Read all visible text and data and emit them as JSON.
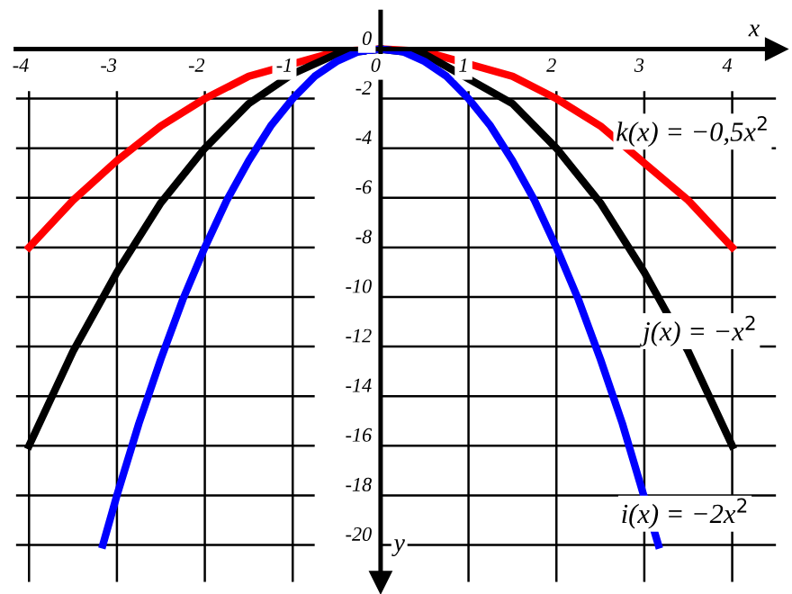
{
  "chart_data": {
    "type": "line",
    "xlabel": "x",
    "ylabel": "y",
    "xlim": [
      -4.15,
      4.5
    ],
    "ylim": [
      -21.5,
      1.5
    ],
    "xticks": [
      -4,
      -3,
      -2,
      -1,
      0,
      1,
      2,
      3,
      4
    ],
    "yticks": [
      0,
      -2,
      -4,
      -6,
      -8,
      -10,
      -12,
      -14,
      -16,
      -18,
      -20
    ],
    "grid": true,
    "legend": false,
    "marker": "none",
    "line_style": "solid",
    "series": [
      {
        "color": "#ff0000",
        "x": [
          -4,
          -3.5,
          -3,
          -2.5,
          -2,
          -1.5,
          -0.5,
          0,
          0.5,
          1.5,
          2,
          2.5,
          3.5,
          4
        ],
        "values": [
          -8,
          -6.1,
          -4.5,
          -3.1,
          -2,
          -1.1,
          -0.1,
          0,
          -0.1,
          -1.1,
          -2,
          -3.1,
          -6.1,
          -8
        ]
      },
      {
        "color": "#000000",
        "x": [
          -4,
          -3.5,
          -3,
          -2.5,
          -2,
          -1.5,
          -1,
          -0.5,
          0,
          0.5,
          1.5,
          2,
          2.5,
          3,
          3.5,
          4
        ],
        "values": [
          -16,
          -12.2,
          -9,
          -6.2,
          -4,
          -2.2,
          -1,
          -0.2,
          0,
          -0.2,
          -2.2,
          -4,
          -6.2,
          -9,
          -12.2,
          -16
        ]
      },
      {
        "color": "#0000ff",
        "x": [
          -3.16,
          -3,
          -2.75,
          -2.5,
          -2.25,
          -2,
          -1.75,
          -1.5,
          -1.25,
          -1,
          -0.75,
          -0.5,
          -0.25,
          0,
          0.25,
          0.5,
          0.75,
          1,
          1.25,
          1.5,
          1.75,
          2,
          2.25,
          2.5,
          2.75,
          3.16
        ],
        "values": [
          -20,
          -18,
          -15.1,
          -12.5,
          -10.1,
          -8,
          -6.1,
          -4.5,
          -3.1,
          -2,
          -1.1,
          -0.5,
          -0.1,
          0,
          -0.1,
          -0.5,
          -1.1,
          -2,
          -3.1,
          -4.5,
          -6.1,
          -8,
          -10.1,
          -12.5,
          -15.1,
          -20
        ]
      }
    ],
    "annotations": [
      "k(x) = −0,5x$^{2}$",
      "j(x) = −x$^{2}$",
      "i(x) = −2x$^{2}$"
    ]
  }
}
